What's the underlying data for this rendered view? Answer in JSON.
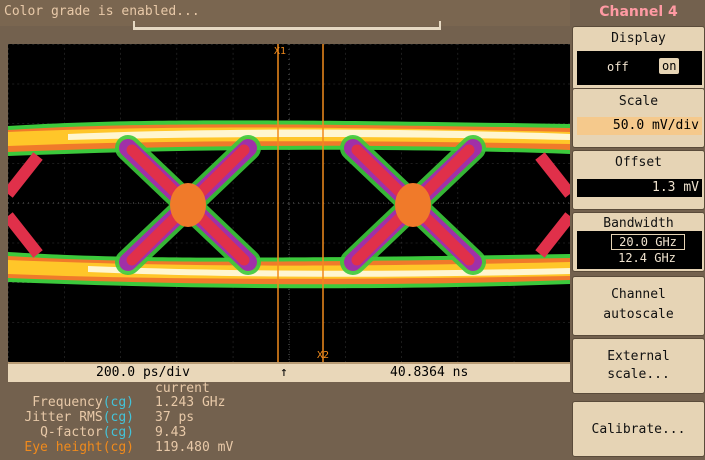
{
  "status": "Color grade is enabled...",
  "footer": {
    "timebase": "200.0 ps/div",
    "arrow": "↑",
    "position": "40.8364 ns"
  },
  "markers": {
    "x1": "X1",
    "x2": "X2"
  },
  "measurements": {
    "header": "current",
    "rows": [
      {
        "label": "Frequency",
        "tag": "(cg)",
        "value": "1.243 GHz"
      },
      {
        "label": "Jitter RMS",
        "tag": "(cg)",
        "value": "37 ps"
      },
      {
        "label": "Q-factor",
        "tag": "(cg)",
        "value": "9.43"
      },
      {
        "label": "Eye height",
        "tag": "(cg)",
        "value": "119.480 mV"
      }
    ]
  },
  "panel": {
    "title": "Channel 4",
    "display": {
      "label": "Display",
      "off": "off",
      "on": "on"
    },
    "scale": {
      "label": "Scale",
      "value": "50.0 mV/div"
    },
    "offset": {
      "label": "Offset",
      "value": "1.3 mV"
    },
    "bandwidth": {
      "label": "Bandwidth",
      "opt1": "20.0 GHz",
      "opt2": "12.4 GHz"
    },
    "autoscale": {
      "line1": "Channel",
      "line2": "autoscale"
    },
    "external": {
      "line1": "External",
      "line2": "scale..."
    },
    "calibrate": "Calibrate..."
  },
  "colors": {
    "accent_orange": "#f08a1c",
    "cyan_tag": "#43c3d9",
    "label": "#e8c9a8",
    "title_pink": "#ff9aa3"
  }
}
